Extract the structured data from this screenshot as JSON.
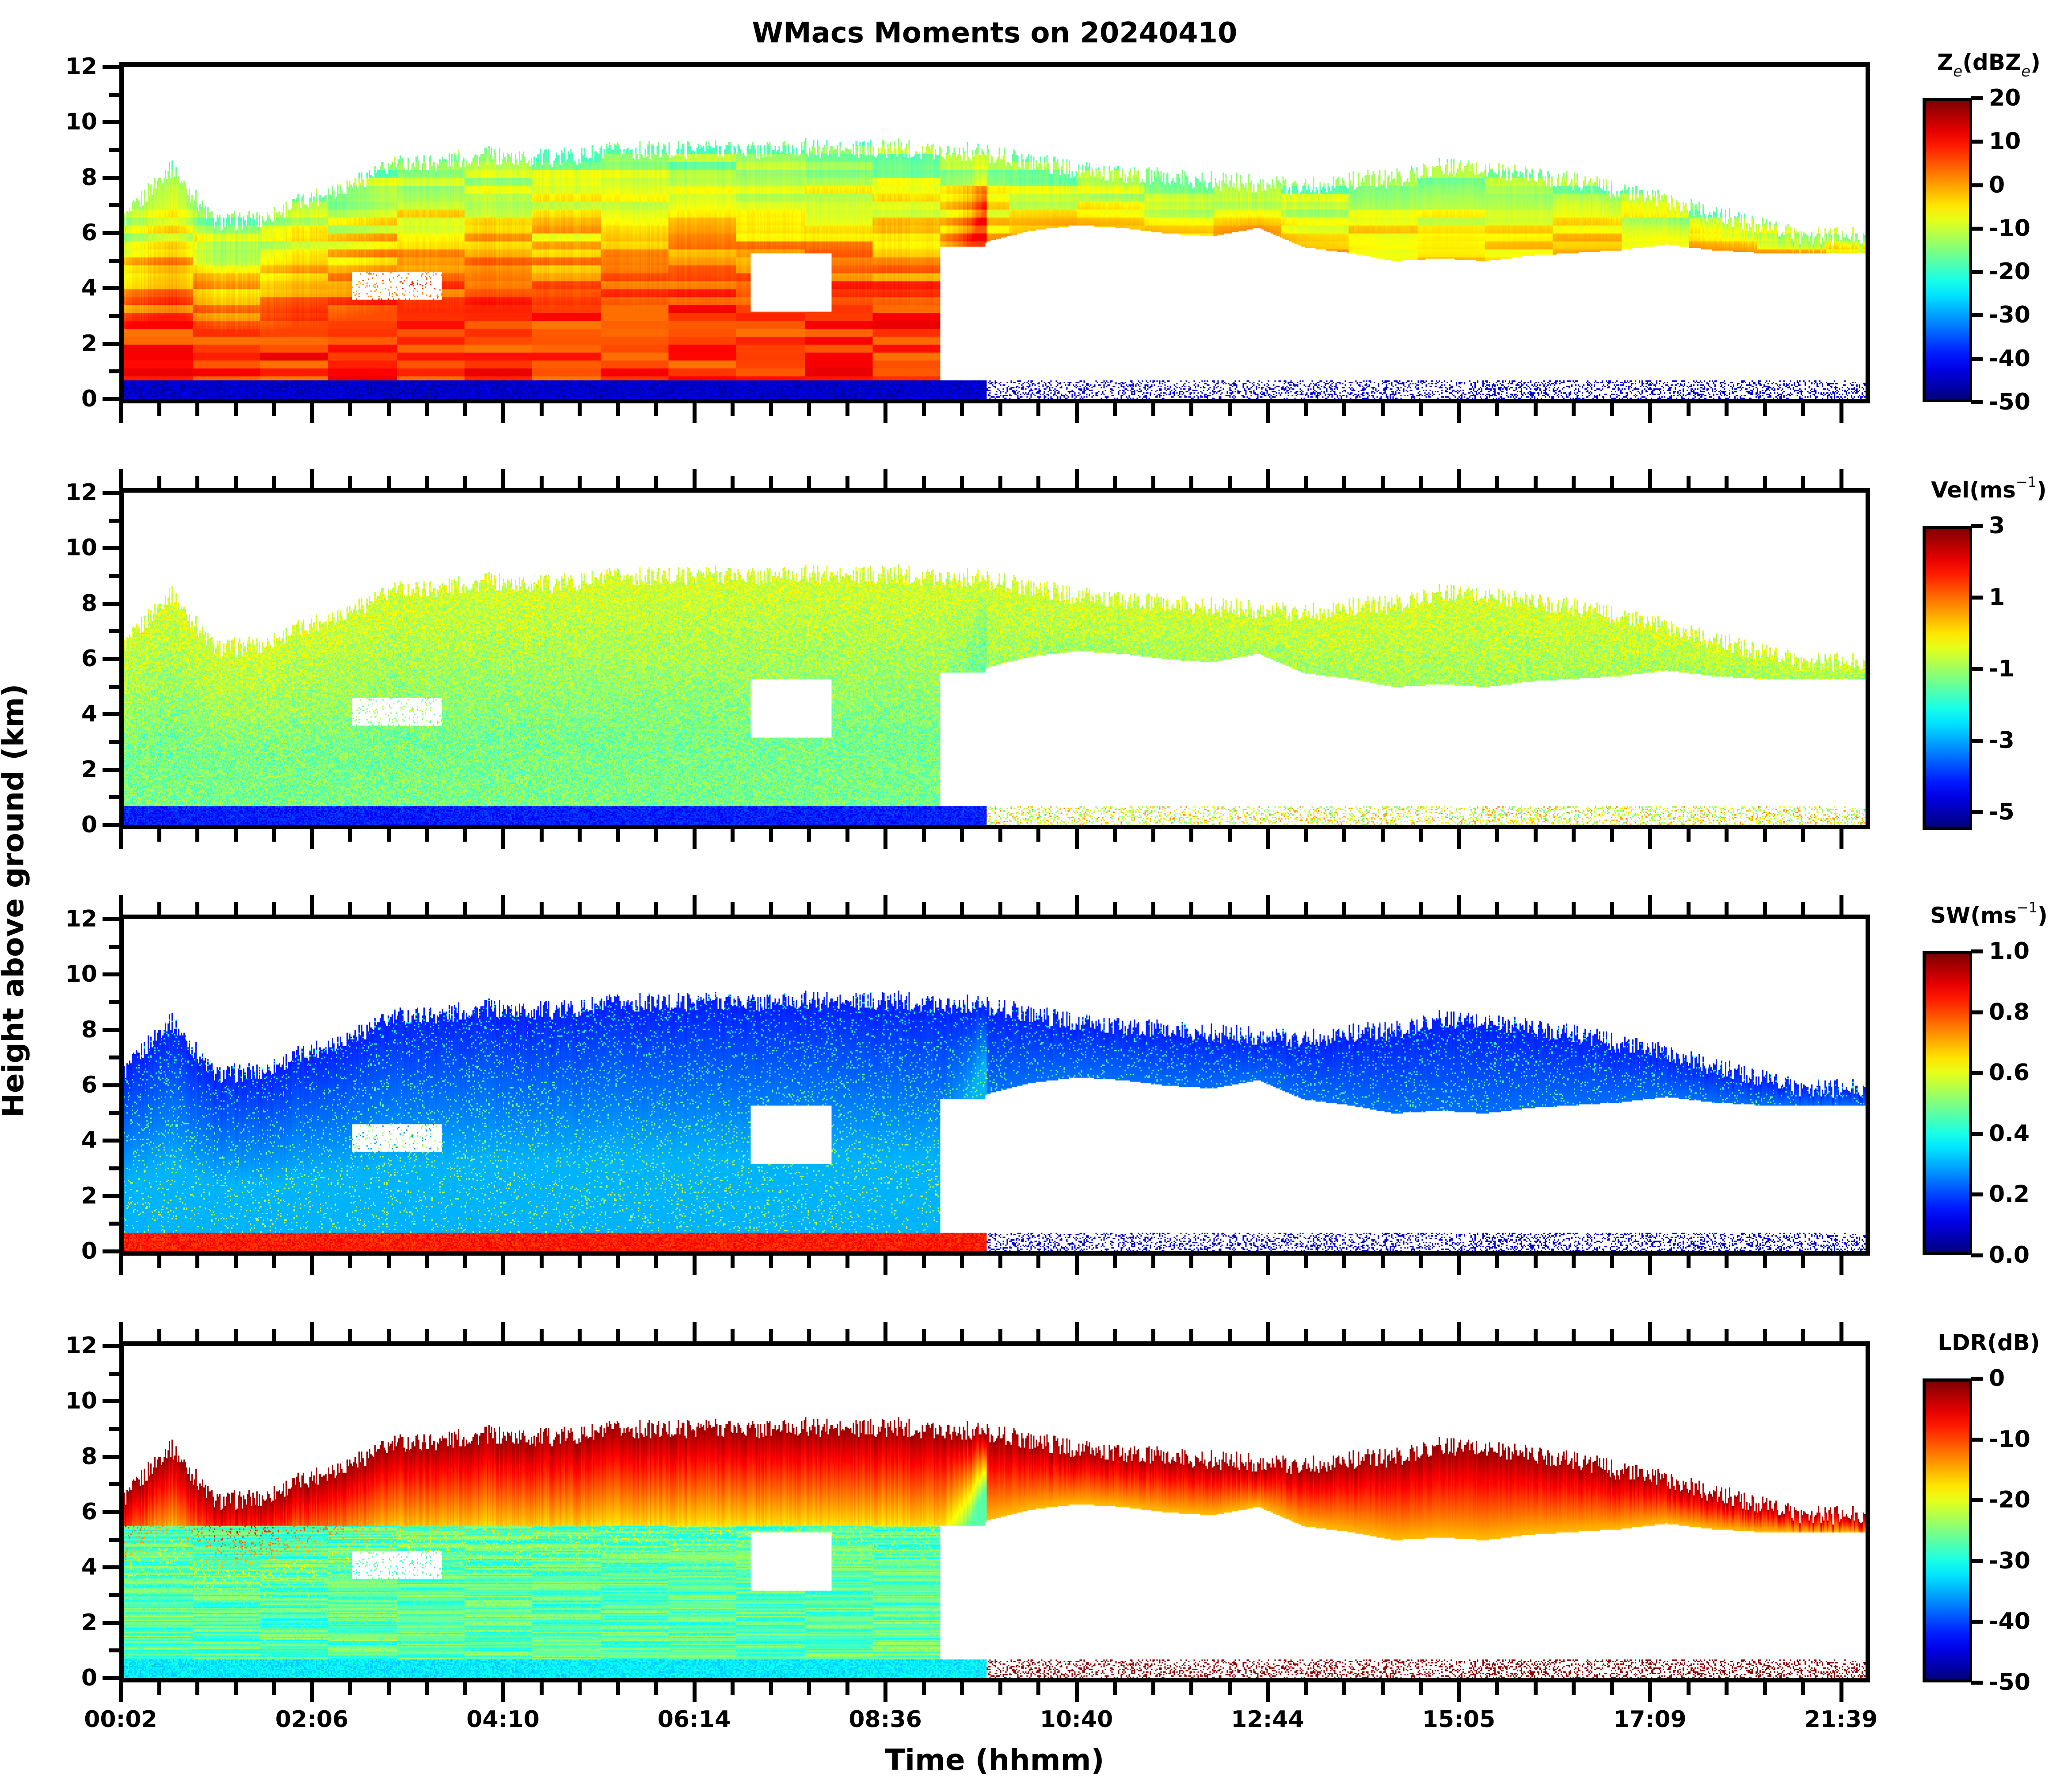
{
  "chart_data": {
    "type": "heatmap",
    "title": "WMacs Moments on 20240410",
    "xlabel": "Time (hhmm)",
    "ylabel": "Height above ground (km)",
    "x_tick_labels": [
      "00:02",
      "02:06",
      "04:10",
      "06:14",
      "08:36",
      "10:40",
      "12:44",
      "15:05",
      "17:09",
      "21:39"
    ],
    "y_ticks": [
      0,
      2,
      4,
      6,
      8,
      10,
      12
    ],
    "ylim": [
      0,
      12
    ],
    "grid": false,
    "colormap": "jet",
    "x_profile_hours": [
      0.0,
      0.5,
      1.0,
      1.5,
      2.0,
      2.5,
      3.0,
      3.5,
      4.0,
      4.5,
      5.0,
      5.5,
      6.0,
      6.5,
      7.0,
      7.5,
      8.0,
      8.5,
      9.0,
      9.5,
      10.0,
      10.5,
      11.0,
      11.5,
      12.0,
      12.5,
      13.0,
      13.5,
      14.0,
      14.5,
      15.0,
      15.5,
      16.0,
      16.5,
      17.0,
      17.5,
      18.0,
      18.5
    ],
    "cloud_top_km": [
      6.5,
      8.4,
      6.4,
      6.5,
      7.2,
      7.8,
      8.5,
      8.6,
      8.8,
      8.7,
      8.8,
      9.0,
      9.0,
      9.1,
      9.0,
      9.1,
      9.0,
      9.1,
      9.0,
      8.9,
      8.6,
      8.3,
      8.1,
      8.0,
      7.9,
      7.8,
      7.7,
      7.9,
      8.0,
      8.4,
      8.3,
      8.1,
      7.9,
      7.5,
      7.2,
      6.7,
      6.3,
      5.9
    ],
    "cloud_base_km": [
      0.0,
      0.0,
      0.0,
      0.0,
      0.0,
      0.0,
      0.0,
      0.0,
      0.0,
      0.0,
      0.0,
      0.0,
      0.0,
      0.0,
      0.0,
      0.0,
      0.0,
      0.0,
      0.0,
      5.7,
      6.1,
      6.3,
      6.2,
      6.0,
      5.9,
      6.2,
      5.5,
      5.3,
      5.0,
      5.1,
      5.0,
      5.2,
      5.3,
      5.4,
      5.6,
      5.4,
      5.3,
      5.3
    ],
    "panels": [
      {
        "id": "reflectivity",
        "colorbar_label_main": "Z",
        "colorbar_label_sub": "e",
        "colorbar_label_rest": "(dBZ",
        "colorbar_label_sub2": "e",
        "colorbar_label_end": ")",
        "vmin": -50,
        "vmax": 20,
        "colorbar_ticks": [
          "20",
          "10",
          "0",
          "-10",
          "-20",
          "-30",
          "-40",
          "-50"
        ],
        "colorbar_tick_values": [
          20,
          10,
          0,
          -10,
          -20,
          -30,
          -40,
          -50
        ],
        "typical_cloud_value": -15,
        "core_value": 8,
        "surface_value": -45
      },
      {
        "id": "velocity",
        "colorbar_label_main": "Vel(ms",
        "colorbar_label_sup": "−1",
        "colorbar_label_end": ")",
        "vmin": -5.5,
        "vmax": 3,
        "colorbar_ticks": [
          "3",
          "1",
          "-1",
          "-3",
          "-5"
        ],
        "colorbar_tick_values": [
          3,
          1,
          -1,
          -3,
          -5
        ],
        "typical_cloud_value": -0.5,
        "core_value": -1.3,
        "surface_value": -4.2
      },
      {
        "id": "spectrum-width",
        "colorbar_label_main": "SW(ms",
        "colorbar_label_sup": "−1",
        "colorbar_label_end": ")",
        "vmin": 0.0,
        "vmax": 1.0,
        "colorbar_ticks": [
          "1.0",
          "0.8",
          "0.6",
          "0.4",
          "0.2",
          "0.0"
        ],
        "colorbar_tick_values": [
          1.0,
          0.8,
          0.6,
          0.4,
          0.2,
          0.0
        ],
        "typical_cloud_value": 0.15,
        "core_value": 0.3,
        "surface_value": 0.85
      },
      {
        "id": "ldr",
        "colorbar_label_main": "LDR(dB)",
        "vmin": -50,
        "vmax": 0,
        "colorbar_ticks": [
          "0",
          "-10",
          "-20",
          "-30",
          "-40",
          "-50"
        ],
        "colorbar_tick_values": [
          0,
          -10,
          -20,
          -30,
          -40,
          -50
        ],
        "typical_cloud_value": -1,
        "core_value": -27,
        "surface_value": -32
      }
    ]
  }
}
